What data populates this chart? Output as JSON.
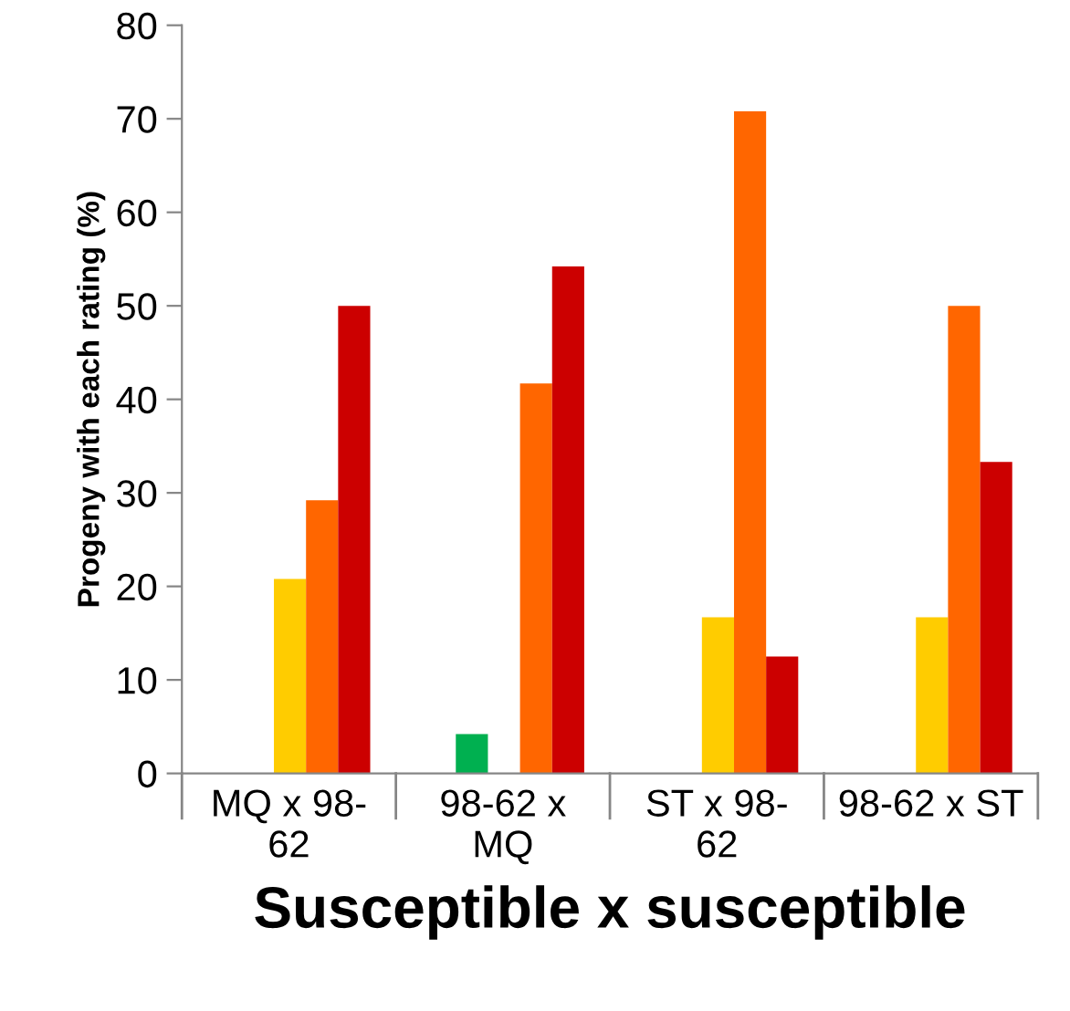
{
  "chart_data": {
    "type": "bar",
    "xlabel": "Susceptible x susceptible",
    "ylabel": "Progeny with each rating (%)",
    "categories": [
      "MQ x 98-\n62",
      "98-62 x\nMQ",
      "ST x 98-\n62",
      "98-62 x ST"
    ],
    "series": [
      {
        "color": "#00b050",
        "values": [
          0,
          4.2,
          0,
          0
        ]
      },
      {
        "color": "#ffcc00",
        "values": [
          20.8,
          0,
          16.7,
          16.7
        ]
      },
      {
        "color": "#ff6600",
        "values": [
          29.2,
          41.7,
          70.8,
          50
        ]
      },
      {
        "color": "#cc0000",
        "values": [
          50,
          54.2,
          12.5,
          33.3
        ]
      }
    ],
    "ylim": [
      0,
      80
    ],
    "yticks": [
      0,
      10,
      20,
      30,
      40,
      50,
      60,
      70,
      80
    ],
    "grid": false,
    "legend": false
  }
}
